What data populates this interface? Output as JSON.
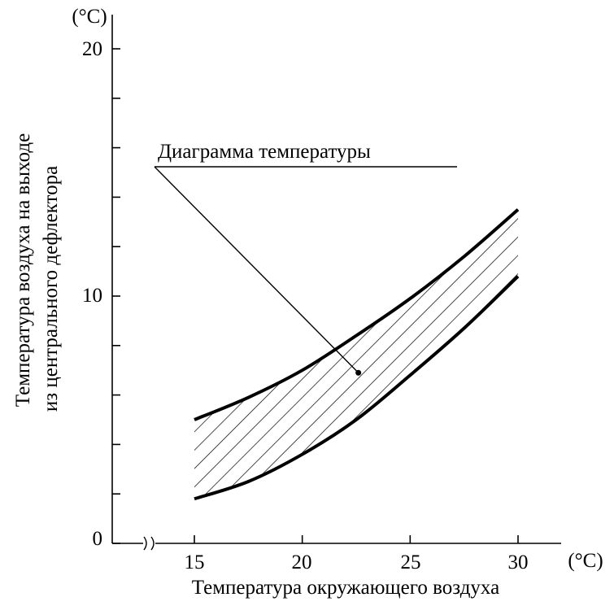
{
  "chart_data": {
    "type": "area",
    "title": "",
    "xlabel": "Температура окружающего воздуха",
    "ylabel_lines": [
      "Температура воздуха на выходе",
      "из центрального дефлектора"
    ],
    "x_unit": "(°C)",
    "y_unit": "(°C)",
    "xlim": [
      13,
      30
    ],
    "ylim": [
      0,
      20
    ],
    "x_axis_break": true,
    "x_ticks": [
      15,
      20,
      25,
      30
    ],
    "x_tick_labels": [
      "15",
      "20",
      "25",
      "30"
    ],
    "y_ticks": [
      0,
      2,
      4,
      6,
      8,
      10,
      12,
      14,
      16,
      18,
      20
    ],
    "y_tick_labels": [
      {
        "value": 0,
        "label": "0"
      },
      {
        "value": 10,
        "label": "10"
      },
      {
        "value": 20,
        "label": "20"
      }
    ],
    "band": {
      "x": [
        15,
        17.5,
        20,
        22.5,
        25,
        27.5,
        30
      ],
      "upper": [
        5.0,
        5.9,
        7.0,
        8.4,
        9.9,
        11.6,
        13.5
      ],
      "lower": [
        1.8,
        2.5,
        3.6,
        5.0,
        6.8,
        8.7,
        10.8
      ],
      "fill_pattern": "diagonal-hatch"
    },
    "annotation": {
      "text": "Диаграмма температуры",
      "point": [
        22.6,
        6.9
      ]
    },
    "grid": false,
    "legend": "none"
  },
  "colors": {
    "stroke": "#000000",
    "background": "#ffffff"
  }
}
